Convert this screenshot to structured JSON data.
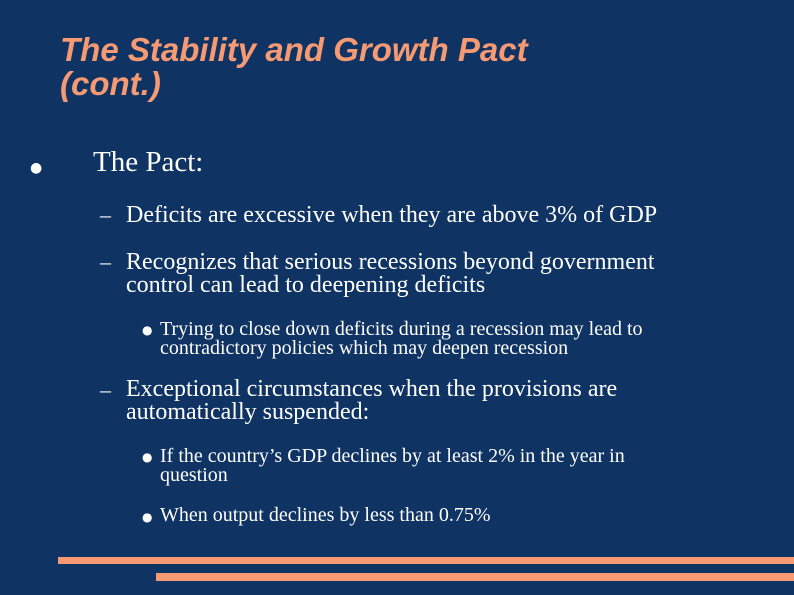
{
  "slide": {
    "title_line1": "The Stability and Growth Pact",
    "title_line2": "(cont.)",
    "bullets": {
      "main_bullet": "●",
      "main": "The Pact:",
      "dash": "–",
      "sub_bullet": "●",
      "item1": "Deficits are excessive when they are above 3% of GDP",
      "item2_line1": "Recognizes that serious recessions beyond government",
      "item2_line2": "control can lead to deepening deficits",
      "item2_sub1_line1": "Trying to close down deficits during a recession may lead to",
      "item2_sub1_line2": "contradictory policies which may deepen recession",
      "item3_line1": "Exceptional circumstances when the provisions are",
      "item3_line2": "automatically suspended:",
      "item3_sub1_line1": "If the country’s GDP declines by at least 2% in the year in",
      "item3_sub1_line2": "question",
      "item3_sub2": "When output declines by less than 0.75%"
    }
  },
  "colors": {
    "background": "#0f3363",
    "accent": "#f59a73",
    "text": "#ffffff"
  }
}
